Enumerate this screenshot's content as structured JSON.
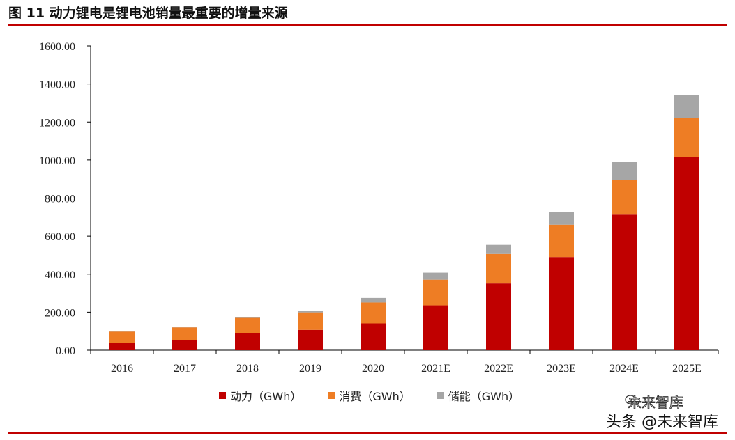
{
  "figure": {
    "title": "图 11 动力锂电是锂电池销量最重要的增量来源"
  },
  "colors": {
    "rule": "#c00000",
    "series": [
      "#c00000",
      "#ee7d24",
      "#a6a6a6"
    ]
  },
  "chart_data": {
    "type": "bar",
    "stacked": true,
    "categories": [
      "2016",
      "2017",
      "2018",
      "2019",
      "2020",
      "2021E",
      "2022E",
      "2023E",
      "2024E",
      "2025E"
    ],
    "series": [
      {
        "name": "动力（GWh）",
        "values": [
          40,
          52,
          90,
          107,
          141,
          236,
          351,
          490,
          713,
          1015
        ]
      },
      {
        "name": "消费（GWh）",
        "values": [
          58,
          68,
          80,
          92,
          110,
          135,
          155,
          170,
          183,
          205
        ]
      },
      {
        "name": "储能（GWh）",
        "values": [
          2,
          3,
          5,
          9,
          24,
          37,
          48,
          67,
          95,
          122
        ]
      }
    ],
    "ylim": [
      0,
      1600
    ],
    "yticks": [
      "0.00",
      "200.00",
      "400.00",
      "600.00",
      "800.00",
      "1000.00",
      "1200.00",
      "1400.00",
      "1600.00"
    ],
    "ytick_values": [
      0,
      200,
      400,
      600,
      800,
      1000,
      1200,
      1400,
      1600
    ],
    "grid": false,
    "legend_position": "bottom"
  },
  "watermark": {
    "line1": "未来智库",
    "line2": "头条 @未来智库"
  }
}
